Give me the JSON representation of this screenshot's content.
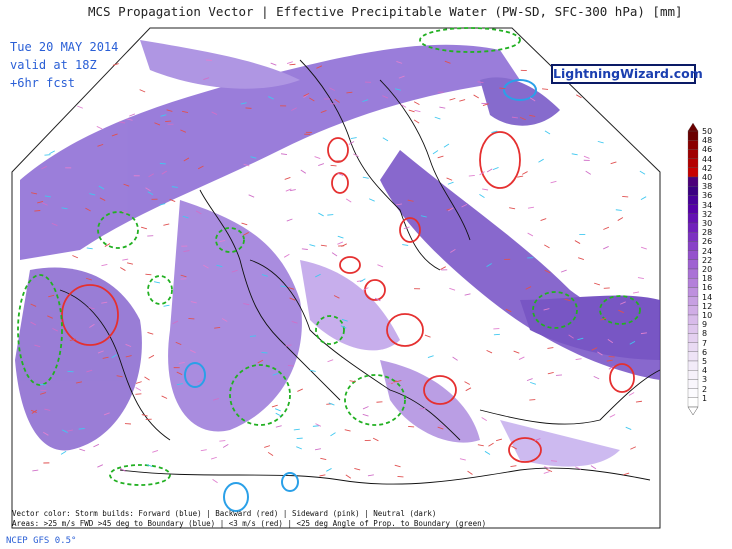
{
  "header": {
    "title": "MCS Propagation Vector | Effective Precipitable Water (PW-SD, SFC-300 hPa) [mm]",
    "valid_lines": [
      "Tue 20 MAY 2014",
      "valid at 18Z",
      "+6hr fcst"
    ]
  },
  "brand": "LightningWizard.com",
  "legend_notes": [
    "Vector color: Storm builds: Forward (blue) | Backward (red) | Sideward (pink) | Neutral (dark)",
    "Areas: >25 m/s FWD >45 deg to Boundary (blue) | <3 m/s (red) | <25 deg Angle of Prop. to Boundary (green)"
  ],
  "footer": "NCEP GFS 0.5°",
  "colorbar": {
    "labels": [
      "50",
      "48",
      "46",
      "44",
      "42",
      "40",
      "38",
      "36",
      "34",
      "32",
      "30",
      "28",
      "26",
      "24",
      "22",
      "20",
      "18",
      "16",
      "14",
      "12",
      "10",
      "9",
      "8",
      "7",
      "6",
      "5",
      "4",
      "3",
      "2",
      "1"
    ],
    "colors": [
      "#6a0000",
      "#8a0000",
      "#a00000",
      "#b40000",
      "#c80000",
      "#4b007a",
      "#3a0082",
      "#48009a",
      "#5600a8",
      "#6410b4",
      "#7020bc",
      "#7c32c2",
      "#8842c8",
      "#9452cc",
      "#9f62d2",
      "#aa72d6",
      "#b480da",
      "#be90de",
      "#c7a0e2",
      "#d0ade6",
      "#d8bbea",
      "#dec6ed",
      "#e4d0f0",
      "#e9daf3",
      "#eee3f6",
      "#f2ebf8",
      "#f6f1fa",
      "#f9f6fc",
      "#fcfbfe",
      "#ffffff"
    ]
  }
}
